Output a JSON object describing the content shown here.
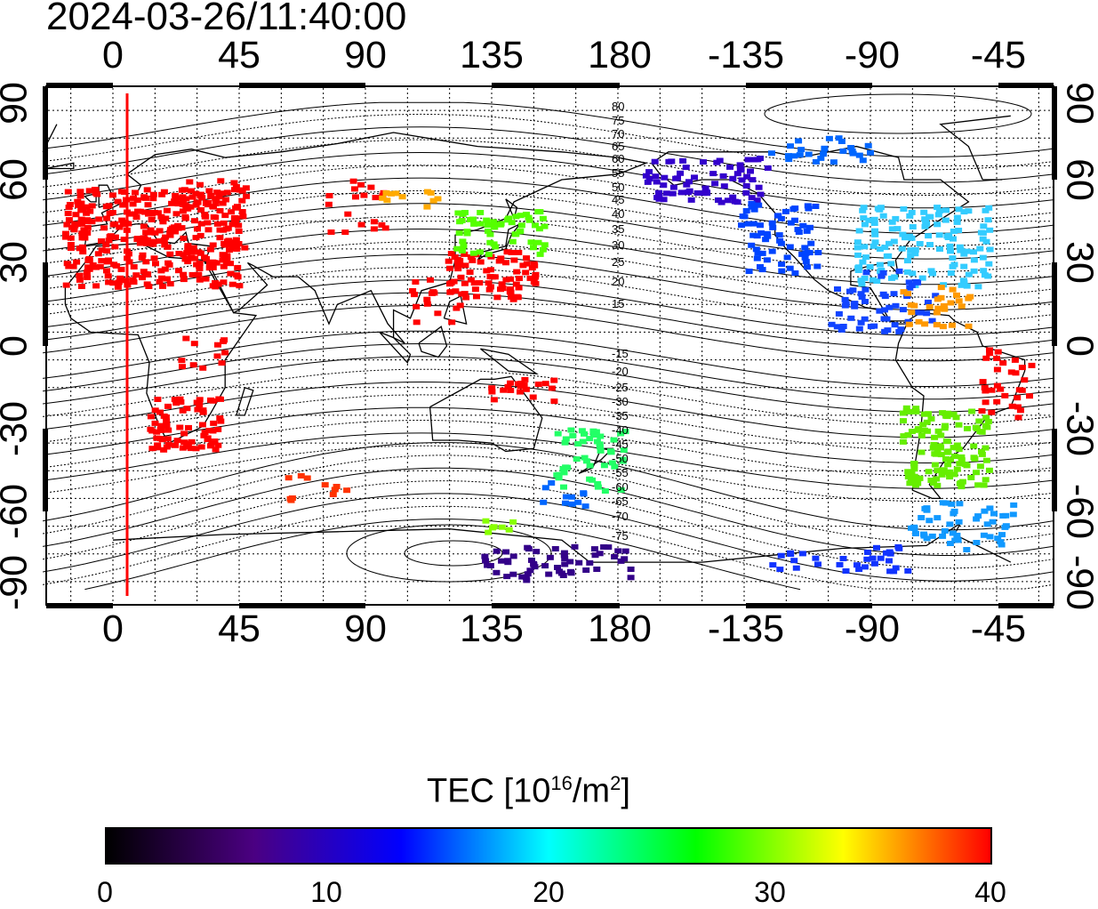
{
  "title": "2024-03-26/11:40:00",
  "axes": {
    "top_labels": [
      "0",
      "45",
      "90",
      "135",
      "180",
      "-135",
      "-90",
      "-45"
    ],
    "bottom_labels": [
      "0",
      "45",
      "90",
      "135",
      "180",
      "-135",
      "-90",
      "-45"
    ],
    "left_labels": [
      "90",
      "60",
      "30",
      "0",
      "-30",
      "-60",
      "-90"
    ],
    "right_labels": [
      "90",
      "60",
      "30",
      "0",
      "-30",
      "-60",
      "-90"
    ]
  },
  "contour_labels": [
    "80",
    "75",
    "70",
    "65",
    "60",
    "55",
    "50",
    "45",
    "40",
    "35",
    "30",
    "25",
    "20",
    "15",
    "-15",
    "-20",
    "-25",
    "-30",
    "-35",
    "-40",
    "-45",
    "-50",
    "-55",
    "-60",
    "-65",
    "-70",
    "-75"
  ],
  "colorbar": {
    "title_prefix": "TEC  [10",
    "title_exp1": "16",
    "title_mid": "/m",
    "title_exp2": "2",
    "title_suffix": "]",
    "min": 0,
    "max": 40,
    "tick_labels": [
      "0",
      "10",
      "20",
      "30",
      "40"
    ],
    "colormap": [
      "#000000",
      "#4b0082",
      "#0000ff",
      "#00ffff",
      "#00ff00",
      "#ffff00",
      "#ff0000"
    ]
  },
  "colors": {
    "terminator_line": "#ff0000",
    "coastline": "#000000",
    "grid": "#000000"
  },
  "terminator_longitude": 5
}
